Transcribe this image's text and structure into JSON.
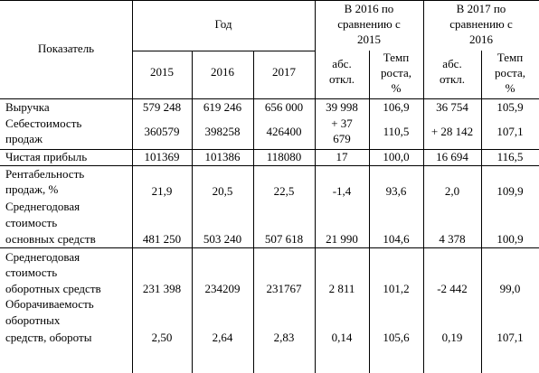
{
  "header": {
    "indicator": "Показатель",
    "year_group": "Год",
    "cmp2016_l1": "В 2016 по",
    "cmp2016_l2": "сравнению с",
    "cmp2016_l3": "2015",
    "cmp2017_l1": "В 2017 по",
    "cmp2017_l2": "сравнению с",
    "cmp2017_l3": "2016",
    "y2015": "2015",
    "y2016": "2016",
    "y2017": "2017",
    "abs_l1": "абс.",
    "abs_l2": "откл.",
    "rate_l1": "Темп",
    "rate_l2": "роста,",
    "rate_l3": "%"
  },
  "rows": {
    "revenue": {
      "label": "Выручка",
      "v2015": "579 248",
      "v2016": "619 246",
      "v2017": "656 000",
      "abs16": "39 998",
      "rate16": "106,9",
      "abs17": "36 754",
      "rate17": "105,9"
    },
    "cost": {
      "label_l1": "Себестоимость",
      "label_l2": "продаж",
      "v2015": "360579",
      "v2016": "398258",
      "v2017": "426400",
      "abs16_l1": "+ 37",
      "abs16_l2": "679",
      "rate16": "110,5",
      "abs17": "+ 28 142",
      "rate17": "107,1"
    },
    "net_profit": {
      "label": "Чистая прибыль",
      "v2015": "101369",
      "v2016": "101386",
      "v2017": "118080",
      "abs16": "17",
      "rate16": "100,0",
      "abs17": "16 694",
      "rate17": "116,5"
    },
    "profitability": {
      "label_l1": "Рентабельность",
      "label_l2": "продаж, %",
      "v2015": "21,9",
      "v2016": "20,5",
      "v2017": "22,5",
      "abs16": "-1,4",
      "rate16": "93,6",
      "abs17": "2,0",
      "rate17": "109,9"
    },
    "fixed_assets": {
      "label_l1": "Среднегодовая",
      "label_l2": "стоимость",
      "label_l3": "основных средств",
      "v2015": "481 250",
      "v2016": "503 240",
      "v2017": "507 618",
      "abs16": "21 990",
      "rate16": "104,6",
      "abs17": "4 378",
      "rate17": "100,9"
    },
    "current_assets": {
      "label_l1": "Среднегодовая",
      "label_l2": "стоимость",
      "label_l3": "оборотных средств",
      "v2015": "231 398",
      "v2016": "234209",
      "v2017": "231767",
      "abs16": "2 811",
      "rate16": "101,2",
      "abs17": "-2 442",
      "rate17": "99,0"
    },
    "turnover": {
      "label_l1": "Оборачиваемость",
      "label_l2": "оборотных",
      "label_l3": "средств, обороты",
      "v2015": "2,50",
      "v2016": "2,64",
      "v2017": "2,83",
      "abs16": "0,14",
      "rate16": "105,6",
      "abs17": "0,19",
      "rate17": "107,1"
    }
  }
}
